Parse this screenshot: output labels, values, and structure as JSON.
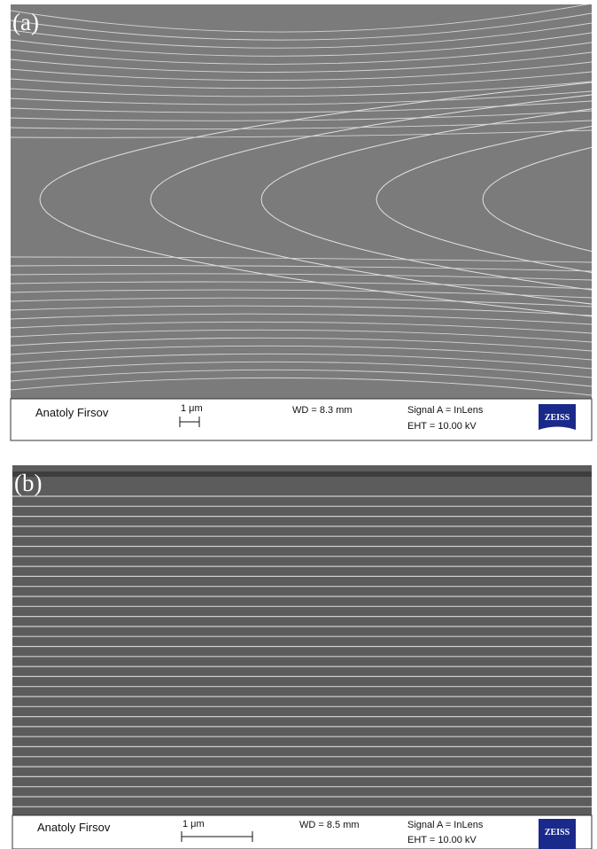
{
  "panels": [
    {
      "label": "(a)",
      "operator": "Anatoly Firsov",
      "scale": "1 μm",
      "wd": "WD =  8.3 mm",
      "signal": "Signal A = InLens",
      "eht": "EHT = 10.00 kV",
      "logo": "ZEISS"
    },
    {
      "label": "(b)",
      "operator": "Anatoly Firsov",
      "scale": "1 μm",
      "wd": "WD =  8.5 mm",
      "signal": "Signal A = InLens",
      "eht": "EHT = 10.00 kV",
      "logo": "ZEISS"
    }
  ]
}
